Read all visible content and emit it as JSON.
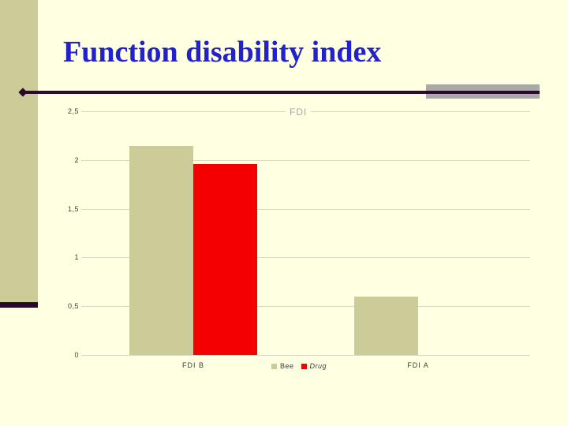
{
  "slide": {
    "title": "Function disability index",
    "colors": {
      "background": "#ffffe1",
      "sidebar": "#cccc99",
      "accent": "#2d082d",
      "band": "#a9a9a9",
      "title_blue": "#2121ce",
      "bee": "#cccc99",
      "drug": "#f40000",
      "gridline": "#d8d8c4",
      "axis_text": "#3d3d3d",
      "chart_title": "#a6a6a6"
    }
  },
  "chart_data": {
    "type": "bar",
    "title": "FDI",
    "categories": [
      "FDI  B",
      "FDI A"
    ],
    "series": [
      {
        "name": "Bee",
        "color_key": "bee",
        "italic": false,
        "values": [
          2.14,
          0.6
        ]
      },
      {
        "name": "Drug",
        "color_key": "drug",
        "italic": true,
        "values": [
          1.96,
          0.0
        ]
      }
    ],
    "ylim": [
      0,
      2.5
    ],
    "yticks": [
      0,
      0.5,
      1,
      1.5,
      2,
      2.5
    ],
    "ytick_labels": [
      "0",
      "0,5",
      "1",
      "1,5",
      "2",
      "2,5"
    ],
    "grid": true,
    "legend_position": "bottom"
  }
}
